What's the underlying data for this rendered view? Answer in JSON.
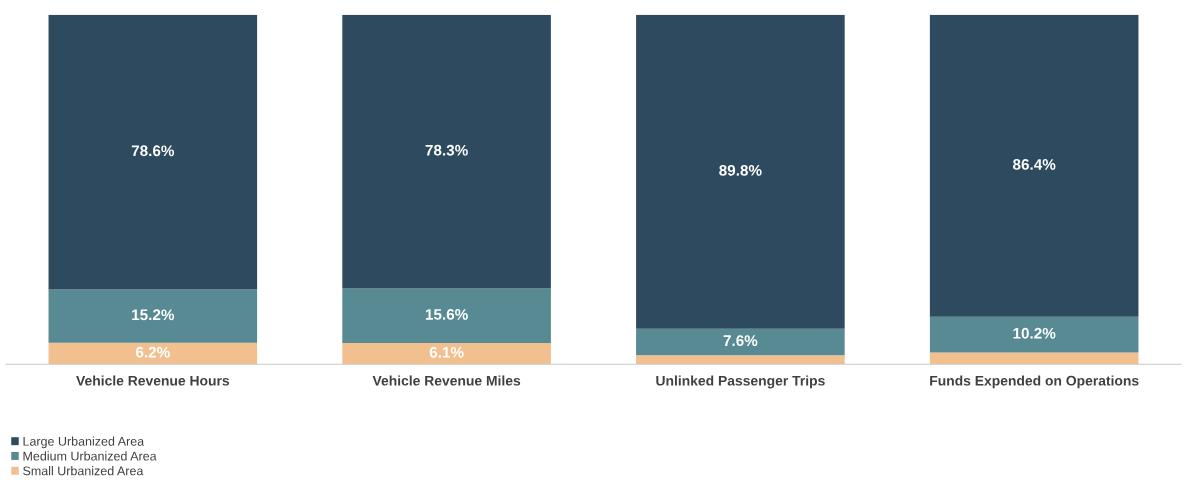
{
  "chart_data": {
    "type": "bar",
    "stacked": true,
    "categories": [
      "Vehicle Revenue Hours",
      "Vehicle Revenue Miles",
      "Unlinked Passenger Trips",
      "Funds Expended on Operations"
    ],
    "series": [
      {
        "name": "Small Urbanized Area",
        "color": "#f2c08e",
        "values": [
          6.2,
          6.1,
          2.6,
          3.4
        ],
        "value_labels": [
          "6.2%",
          "6.1%",
          null,
          null
        ]
      },
      {
        "name": "Medium Urbanized Area",
        "color": "#588a93",
        "values": [
          15.2,
          15.6,
          7.6,
          10.2
        ],
        "value_labels": [
          "15.2%",
          "15.6%",
          "7.6%",
          "10.2%"
        ]
      },
      {
        "name": "Large Urbanized Area",
        "color": "#2e4a5f",
        "values": [
          78.6,
          78.3,
          89.8,
          86.4
        ],
        "value_labels": [
          "78.6%",
          "78.3%",
          "89.8%",
          "86.4%"
        ]
      }
    ],
    "legend": "bottom left",
    "tick_labels": "x",
    "grid": false
  }
}
